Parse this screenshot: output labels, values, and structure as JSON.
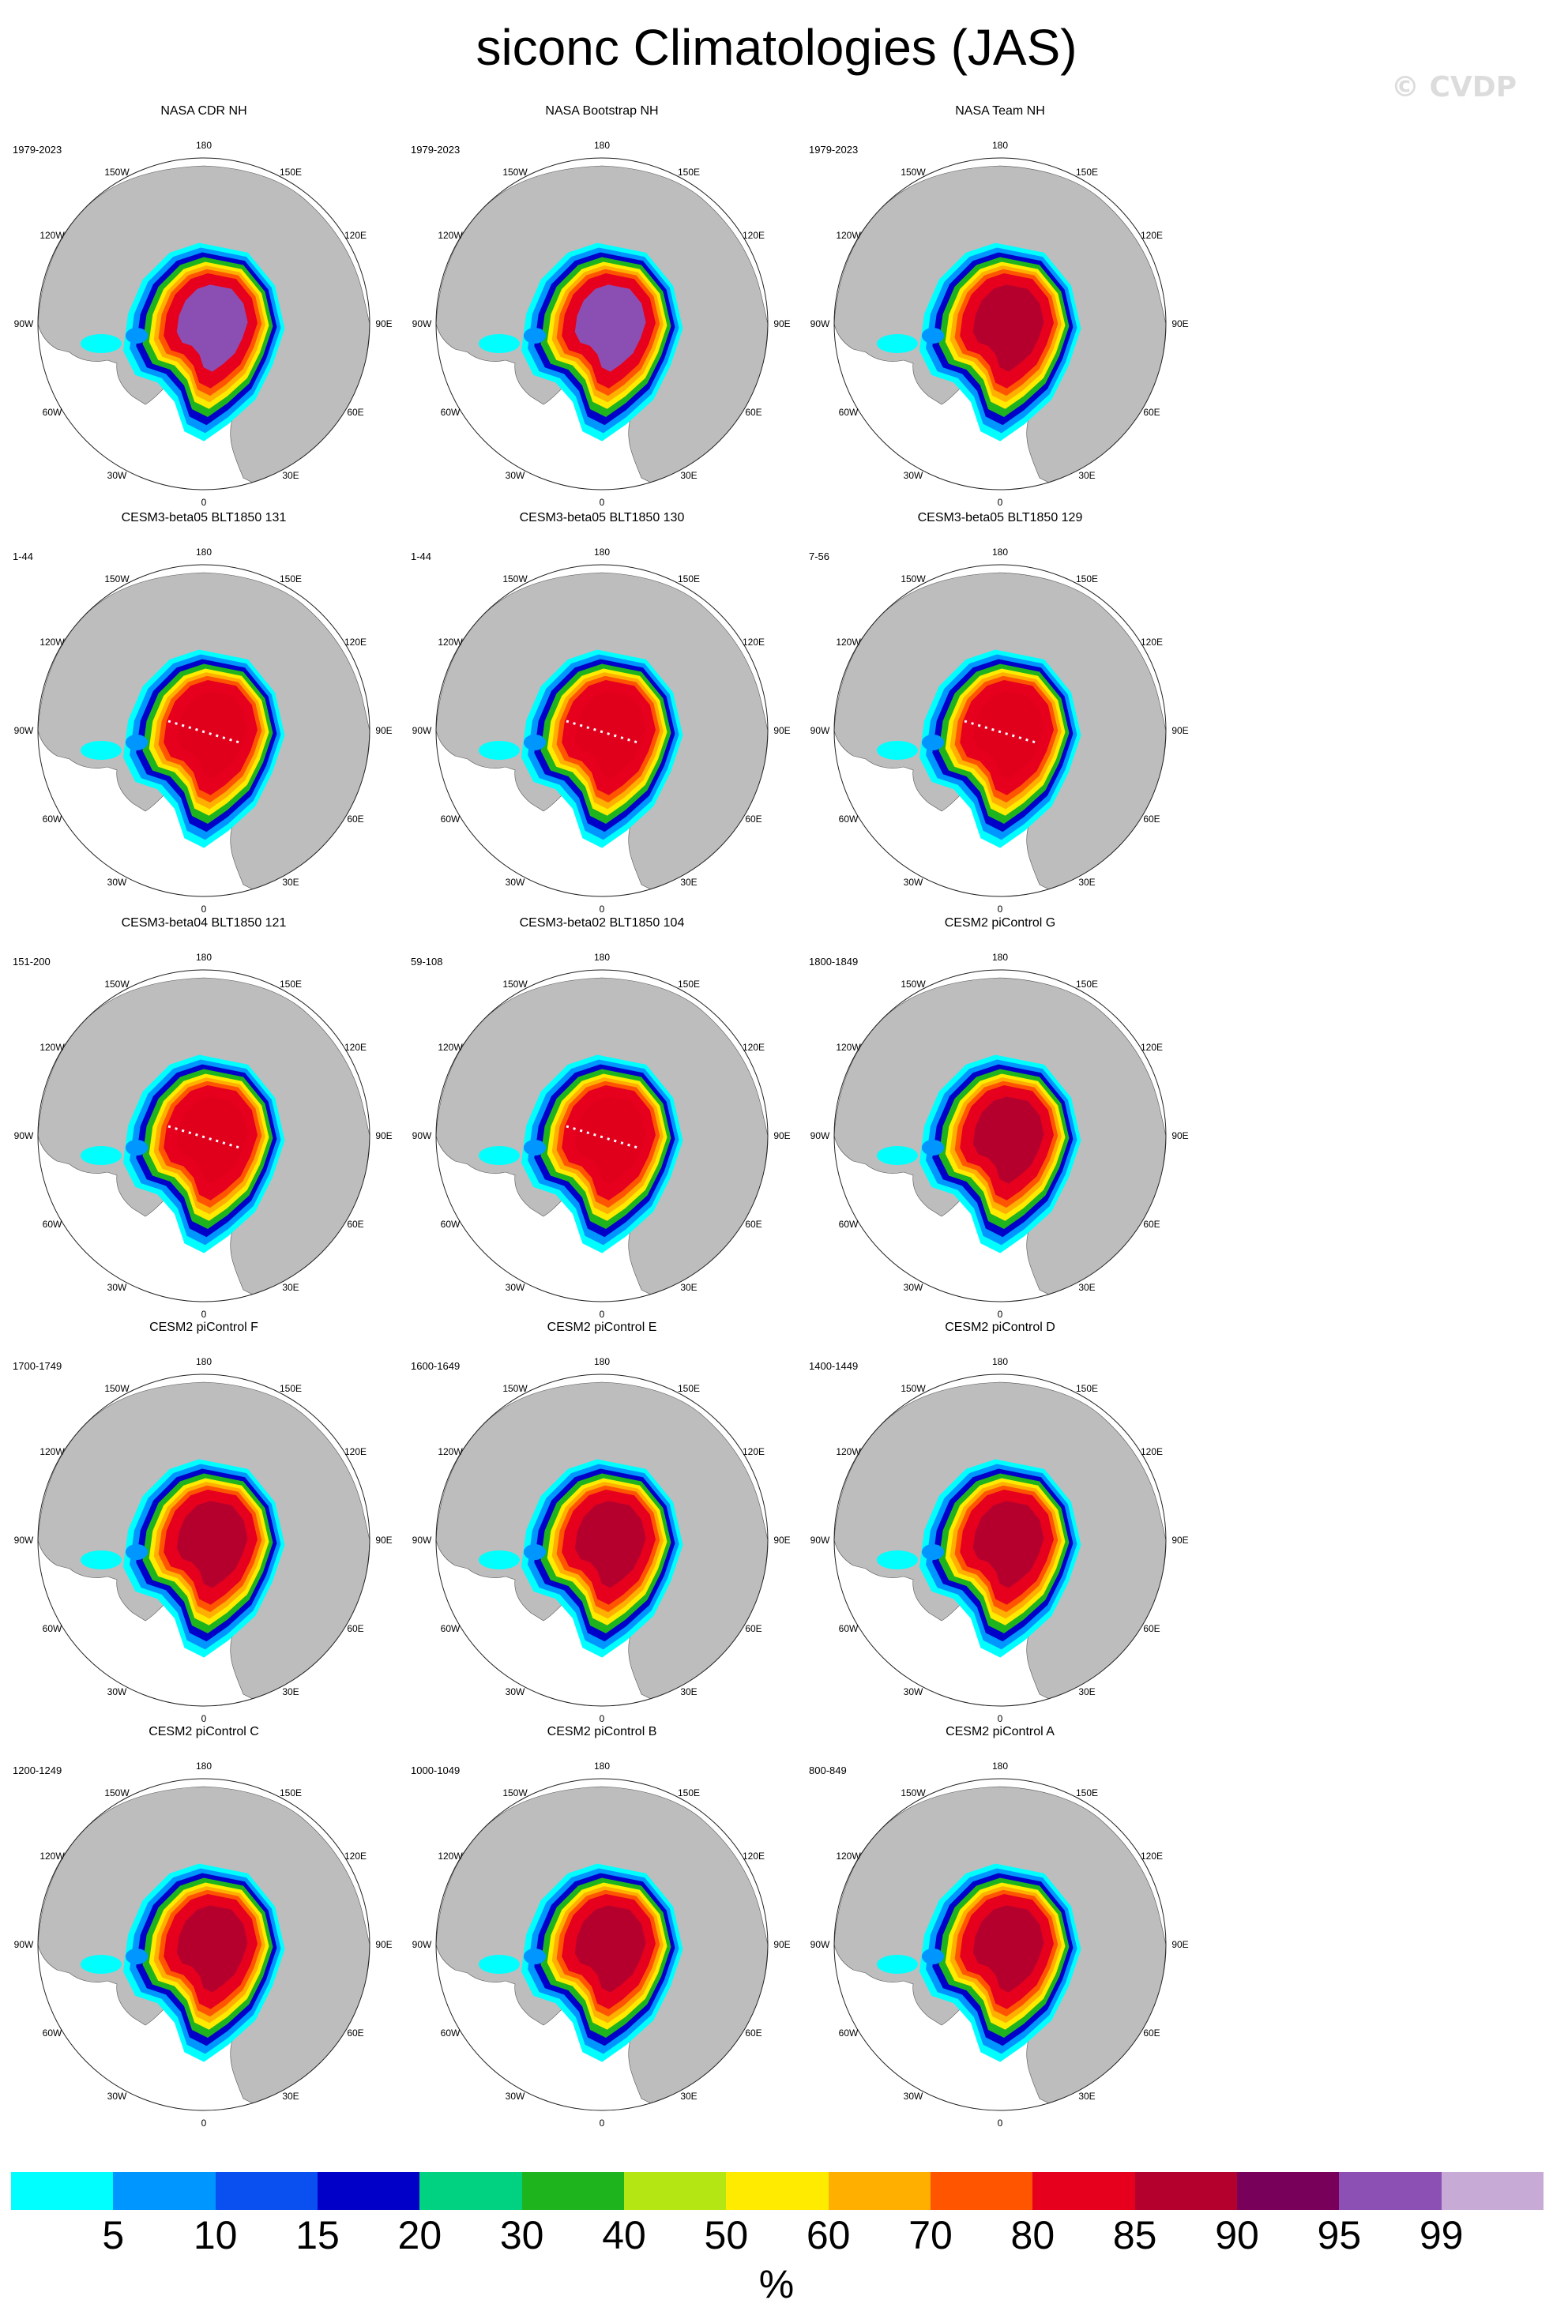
{
  "figure": {
    "title": "siconc Climatologies (JAS)",
    "watermark": "© CVDP"
  },
  "map_labels": {
    "lon_top": "180",
    "lon_bottom": "0",
    "lon_150w": "150W",
    "lon_150e": "150E",
    "lon_120w": "120W",
    "lon_120e": "120E",
    "lon_90w": "90W",
    "lon_90e": "90E",
    "lon_60w": "60W",
    "lon_60e": "60E",
    "lon_30w": "30W",
    "lon_30e": "30E"
  },
  "panels": [
    {
      "title": "NASA CDR NH",
      "period": "1979-2023",
      "core": "#8b4fb3",
      "transect": false
    },
    {
      "title": "NASA Bootstrap NH",
      "period": "1979-2023",
      "core": "#8b4fb3",
      "transect": false
    },
    {
      "title": "NASA Team NH",
      "period": "1979-2023",
      "core": "#b5002e",
      "transect": false
    },
    {
      "title": "CESM3-beta05 BLT1850 131",
      "period": "1-44",
      "core": "#e0001c",
      "transect": true
    },
    {
      "title": "CESM3-beta05 BLT1850 130",
      "period": "1-44",
      "core": "#e0001c",
      "transect": true
    },
    {
      "title": "CESM3-beta05 BLT1850 129",
      "period": "7-56",
      "core": "#e0001c",
      "transect": true
    },
    {
      "title": "CESM3-beta04 BLT1850 121",
      "period": "151-200",
      "core": "#e0001c",
      "transect": true
    },
    {
      "title": "CESM3-beta02 BLT1850 104",
      "period": "59-108",
      "core": "#e0001c",
      "transect": true
    },
    {
      "title": "CESM2 piControl G",
      "period": "1800-1849",
      "core": "#b5002e",
      "transect": false
    },
    {
      "title": "CESM2 piControl F",
      "period": "1700-1749",
      "core": "#b5002e",
      "transect": false
    },
    {
      "title": "CESM2 piControl E",
      "period": "1600-1649",
      "core": "#b5002e",
      "transect": false
    },
    {
      "title": "CESM2 piControl D",
      "period": "1400-1449",
      "core": "#b5002e",
      "transect": false
    },
    {
      "title": "CESM2 piControl C",
      "period": "1200-1249",
      "core": "#b5002e",
      "transect": false
    },
    {
      "title": "CESM2 piControl B",
      "period": "1000-1049",
      "core": "#b5002e",
      "transect": false
    },
    {
      "title": "CESM2 piControl A",
      "period": "800-849",
      "core": "#b5002e",
      "transect": false
    }
  ],
  "colorbar": {
    "unit": "%",
    "colors": [
      "#00ffff",
      "#0096ff",
      "#0a50f0",
      "#0000c8",
      "#00d282",
      "#1eb41e",
      "#b4e614",
      "#ffeb00",
      "#ffaf00",
      "#ff5500",
      "#e6001e",
      "#b4002d",
      "#78005a",
      "#8c50b4",
      "#c8aad7"
    ],
    "ticks": [
      "5",
      "10",
      "15",
      "20",
      "30",
      "40",
      "50",
      "60",
      "70",
      "80",
      "85",
      "90",
      "95",
      "99"
    ]
  }
}
